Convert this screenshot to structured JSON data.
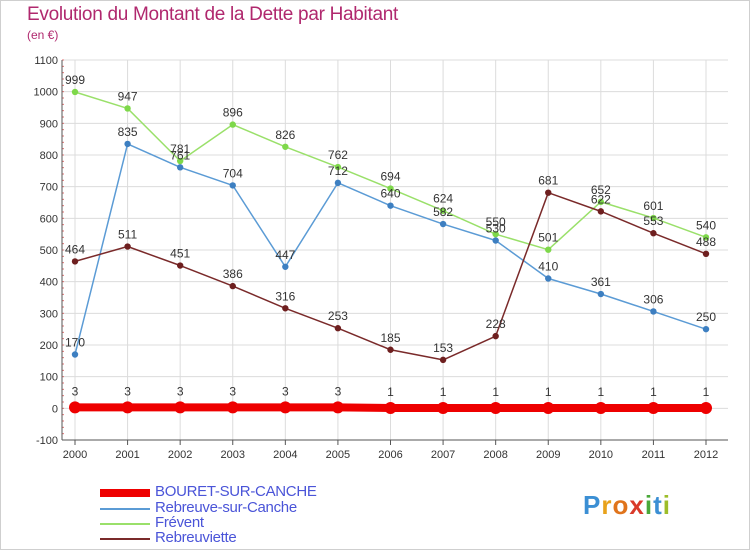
{
  "header": {
    "title": "Evolution du Montant de la Dette par Habitant",
    "subtitle": "(en €)"
  },
  "logo": {
    "text": "Proxiti",
    "letters": [
      {
        "ch": "P",
        "color": "#3b8fd4"
      },
      {
        "ch": "r",
        "color": "#e8a21a"
      },
      {
        "ch": "o",
        "color": "#e0741c"
      },
      {
        "ch": "x",
        "color": "#d93a2a"
      },
      {
        "ch": "i",
        "color": "#4aa83a"
      },
      {
        "ch": "t",
        "color": "#3b8fd4"
      },
      {
        "ch": "i",
        "color": "#9dbd2a"
      }
    ]
  },
  "chart_data": {
    "type": "line",
    "x": [
      "2000",
      "2001",
      "2002",
      "2003",
      "2004",
      "2005",
      "2006",
      "2007",
      "2008",
      "2009",
      "2010",
      "2011",
      "2012"
    ],
    "ylim": [
      -100,
      1100
    ],
    "yticks": [
      -100,
      0,
      100,
      200,
      300,
      400,
      500,
      600,
      700,
      800,
      900,
      1000,
      1100
    ],
    "grid": true,
    "legend_position": "bottom-left",
    "series": [
      {
        "name": "BOURET-SUR-CANCHE",
        "color": "#ee0000",
        "line_width": 8,
        "marker_color": "#ee0000",
        "values": [
          3,
          3,
          3,
          3,
          3,
          3,
          1,
          1,
          1,
          1,
          1,
          1,
          1
        ]
      },
      {
        "name": "Rebreuve-sur-Canche",
        "color": "#5b9bd5",
        "line_width": 1.5,
        "marker_color": "#3d7fc1",
        "values": [
          170,
          835,
          761,
          704,
          447,
          712,
          640,
          582,
          530,
          410,
          361,
          306,
          250
        ]
      },
      {
        "name": "Frévent",
        "color": "#9ae06a",
        "line_width": 1.5,
        "marker_color": "#7ed84a",
        "values": [
          999,
          947,
          781,
          896,
          826,
          762,
          694,
          624,
          550,
          501,
          652,
          601,
          540
        ]
      },
      {
        "name": "Rebreuviette",
        "color": "#7a2a2a",
        "line_width": 1.5,
        "marker_color": "#6e1f1f",
        "values": [
          464,
          511,
          451,
          386,
          316,
          253,
          185,
          153,
          228,
          681,
          622,
          553,
          488
        ]
      }
    ]
  }
}
